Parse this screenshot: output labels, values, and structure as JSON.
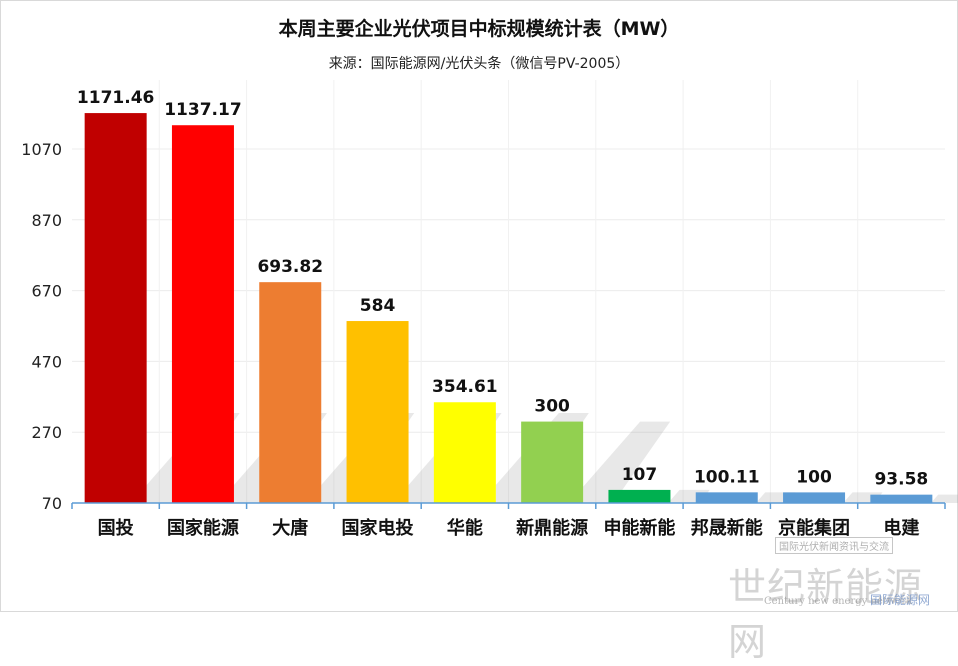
{
  "title": "本周主要企业光伏项目中标规模统计表（MW）",
  "subtitle": "来源：国际能源网/光伏头条（微信号PV-2005）",
  "watermark": {
    "main": "世纪新能源网",
    "sub": "国际光伏新闻资讯与交流",
    "english": "Century new energy network",
    "brand": "国际能源网"
  },
  "chart_data": {
    "type": "bar",
    "categories": [
      "国投",
      "国家能源",
      "大唐",
      "国家电投",
      "华能",
      "新鼎能源",
      "申能新能",
      "邦晟新能",
      "京能集团",
      "电建"
    ],
    "values": [
      1171.46,
      1137.17,
      693.82,
      584,
      354.61,
      300,
      107,
      100.11,
      100,
      93.58
    ],
    "value_labels": [
      "1171.46",
      "1137.17",
      "693.82",
      "584",
      "354.61",
      "300",
      "107",
      "100.11",
      "100",
      "93.58"
    ],
    "colors": [
      "#C00000",
      "#FF0000",
      "#ED7D31",
      "#FFC000",
      "#FFFF00",
      "#92D050",
      "#00B050",
      "#5B9BD5",
      "#5B9BD5",
      "#5B9BD5"
    ],
    "yticks": [
      70,
      270,
      470,
      670,
      870,
      1070
    ],
    "ylim": [
      70,
      1230
    ],
    "grid": true,
    "legend": "none",
    "xlabel": "",
    "ylabel": ""
  }
}
